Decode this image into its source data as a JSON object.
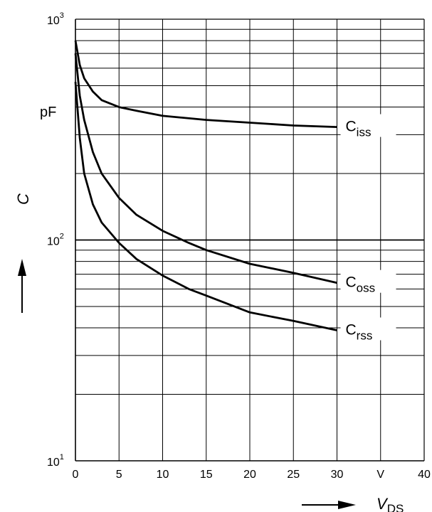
{
  "chart_data": {
    "type": "line",
    "x_scale": "linear",
    "y_scale": "log",
    "xlim": [
      0,
      40
    ],
    "ylim": [
      10,
      1000
    ],
    "grid": true,
    "x_ticks": [
      "0",
      "5",
      "10",
      "15",
      "20",
      "25",
      "30",
      "V",
      "40"
    ],
    "x_tick_values": [
      0,
      5,
      10,
      15,
      20,
      25,
      30,
      35,
      40
    ],
    "y_ticks": [
      {
        "base": "10",
        "exp": "3",
        "value": 1000
      },
      {
        "base": "10",
        "exp": "2",
        "value": 100
      },
      {
        "base": "10",
        "exp": "1",
        "value": 10
      }
    ],
    "y_unit_label": "pF",
    "xlabel": {
      "main": "V",
      "sub": "DS"
    },
    "ylabel": "C",
    "x_arrow": "right",
    "y_arrow": "up",
    "series": [
      {
        "name": "C",
        "name_sub": "iss",
        "x": [
          0,
          0.5,
          1,
          2,
          3,
          5,
          7,
          10,
          15,
          20,
          25,
          30
        ],
        "y": [
          800,
          620,
          540,
          470,
          430,
          400,
          385,
          365,
          350,
          340,
          330,
          325
        ]
      },
      {
        "name": "C",
        "name_sub": "oss",
        "x": [
          0,
          0.5,
          1,
          2,
          3,
          5,
          7,
          10,
          13,
          15,
          20,
          25,
          30
        ],
        "y": [
          700,
          450,
          350,
          250,
          200,
          155,
          130,
          110,
          97,
          90,
          78,
          71,
          64
        ]
      },
      {
        "name": "C",
        "name_sub": "rss",
        "x": [
          0,
          0.5,
          1,
          2,
          3,
          5,
          7,
          10,
          13,
          15,
          20,
          25,
          30
        ],
        "y": [
          520,
          290,
          200,
          145,
          120,
          97,
          82,
          69,
          60,
          56,
          47,
          43,
          39
        ]
      }
    ]
  }
}
